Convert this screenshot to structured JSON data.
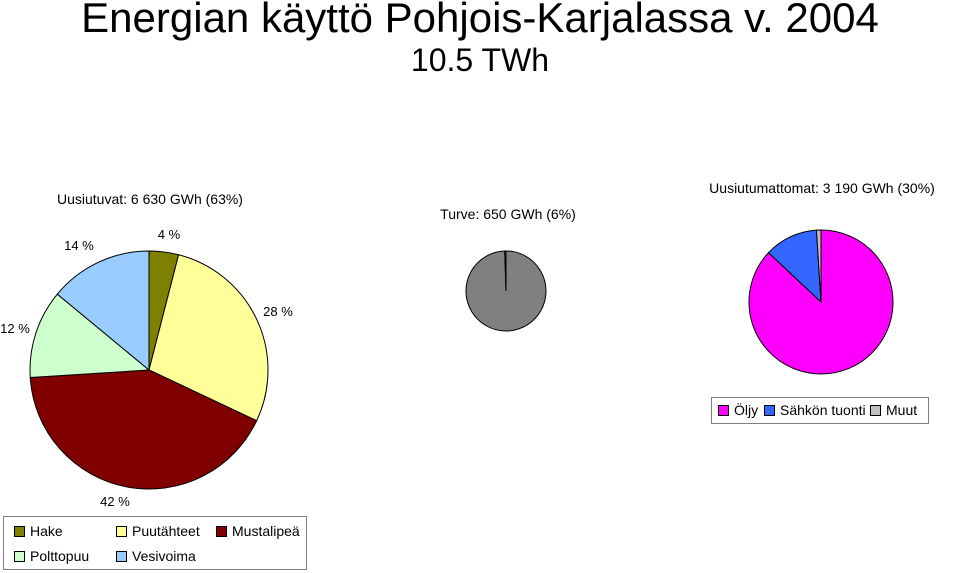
{
  "page": {
    "title": "Energian käyttö Pohjois-Karjalassa v. 2004",
    "subtitle": "10.5 TWh"
  },
  "chart_data": [
    {
      "type": "pie",
      "title": "Uusiutuvat:  6 630 GWh  (63%)",
      "slices": [
        {
          "name": "Hake",
          "value": 4,
          "label": "4 %",
          "color": "#808000"
        },
        {
          "name": "Puutähteet",
          "value": 28,
          "label": "28 %",
          "color": "#ffff99"
        },
        {
          "name": "Mustalipeä",
          "value": 42,
          "label": "42 %",
          "color": "#800000"
        },
        {
          "name": "Polttopuu",
          "value": 12,
          "label": "12 %",
          "color": "#ccffcc"
        },
        {
          "name": "Vesivoima",
          "value": 14,
          "label": "14 %",
          "color": "#99ccff"
        }
      ],
      "legend": [
        "Hake",
        "Puutähteet",
        "Mustalipeä",
        "Polttopuu",
        "Vesivoima"
      ],
      "legend_position": "bottom-left"
    },
    {
      "type": "pie",
      "title": "Turve: 650 GWh (6%)",
      "slices": [
        {
          "name": "Turve",
          "value": 99.5,
          "color": "#808080"
        },
        {
          "name": "",
          "value": 0.5,
          "color": "#808080"
        }
      ]
    },
    {
      "type": "pie",
      "title": "Uusiutumattomat: 3 190 GWh  (30%)",
      "slices": [
        {
          "name": "Öljy",
          "value": 87,
          "color": "#ff00ff"
        },
        {
          "name": "Sähkön tuonti",
          "value": 12,
          "color": "#3366ff"
        },
        {
          "name": "Muut",
          "value": 1,
          "color": "#c0c0c0"
        }
      ],
      "legend": [
        "Öljy",
        "Sähkön tuonti",
        "Muut"
      ],
      "legend_position": "bottom-right"
    }
  ]
}
